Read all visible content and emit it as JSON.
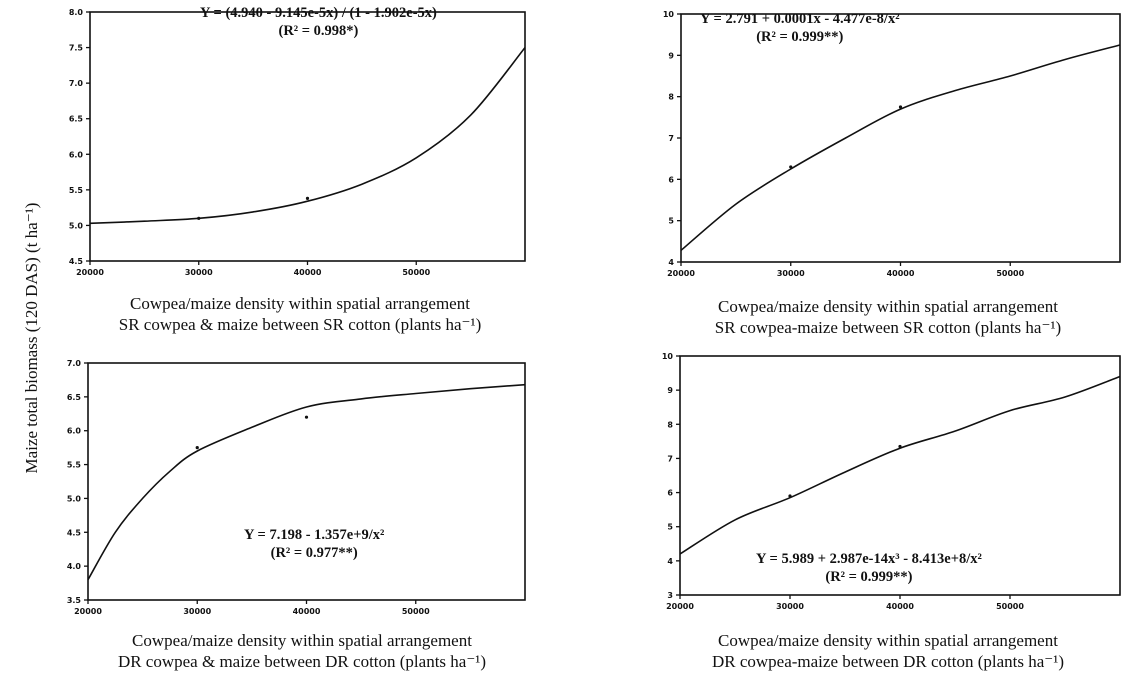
{
  "y_axis_label": "Maize total biomass (120 DAS) (t ha⁻¹)",
  "panels": [
    {
      "equation": "Y = (4.940 - 9.145e-5x) / (1 - 1.902e-5x)",
      "r2": "(R² = 0.998*)",
      "caption_line1": "Cowpea/maize density within spatial arrangement",
      "caption_line2": "SR cowpea & maize between SR cotton (plants ha⁻¹)"
    },
    {
      "equation": "Y = 2.791 + 0.0001x - 4.477e-8/x²",
      "r2": "(R² = 0.999**)",
      "caption_line1": "Cowpea/maize density within spatial arrangement",
      "caption_line2": "SR cowpea-maize between SR cotton (plants ha⁻¹)"
    },
    {
      "equation": "Y = 7.198 - 1.357e+9/x²",
      "r2": "(R² = 0.977**)",
      "caption_line1": "Cowpea/maize density within spatial arrangement",
      "caption_line2": "DR cowpea & maize between DR cotton (plants ha⁻¹)"
    },
    {
      "equation": "Y = 5.989 + 2.987e-14x³ - 8.413e+8/x²",
      "r2": "(R² = 0.999**)",
      "caption_line1": "Cowpea/maize density within spatial arrangement",
      "caption_line2": "DR cowpea-maize between DR cotton (plants ha⁻¹)"
    }
  ],
  "chart_data": [
    {
      "type": "line",
      "xlim": [
        20000,
        60000
      ],
      "ylim": [
        4.5,
        8.0
      ],
      "xticks": [
        "20000",
        "30000",
        "40000",
        "50000"
      ],
      "yticks": [
        "4.5",
        "5.0",
        "5.5",
        "6.0",
        "6.5",
        "7.0",
        "7.5",
        "8.0"
      ],
      "x": [
        20000,
        25000,
        30000,
        35000,
        40000,
        45000,
        50000,
        55000,
        60000
      ],
      "y": [
        5.03,
        5.06,
        5.1,
        5.19,
        5.34,
        5.58,
        5.95,
        6.55,
        7.5
      ],
      "points": [
        {
          "x": 30000,
          "y": 5.1
        },
        {
          "x": 40000,
          "y": 5.38
        }
      ],
      "grid": false
    },
    {
      "type": "line",
      "xlim": [
        20000,
        60000
      ],
      "ylim": [
        4,
        10
      ],
      "xticks": [
        "20000",
        "30000",
        "40000",
        "50000"
      ],
      "yticks": [
        "4",
        "5",
        "6",
        "7",
        "8",
        "9",
        "10"
      ],
      "x": [
        20000,
        25000,
        30000,
        35000,
        40000,
        45000,
        50000,
        55000,
        60000
      ],
      "y": [
        4.28,
        5.4,
        6.25,
        7.0,
        7.7,
        8.15,
        8.5,
        8.9,
        9.25
      ],
      "points": [
        {
          "x": 30000,
          "y": 6.3
        },
        {
          "x": 40000,
          "y": 7.75
        }
      ],
      "grid": false
    },
    {
      "type": "line",
      "xlim": [
        20000,
        60000
      ],
      "ylim": [
        3.5,
        7.0
      ],
      "xticks": [
        "20000",
        "30000",
        "40000",
        "50000"
      ],
      "yticks": [
        "3.5",
        "4.0",
        "4.5",
        "5.0",
        "5.5",
        "6.0",
        "6.5",
        "7.0"
      ],
      "x": [
        20000,
        22500,
        25000,
        27500,
        30000,
        35000,
        40000,
        45000,
        50000,
        55000,
        60000
      ],
      "y": [
        3.8,
        4.5,
        5.0,
        5.4,
        5.7,
        6.05,
        6.35,
        6.47,
        6.55,
        6.62,
        6.68
      ],
      "points": [
        {
          "x": 30000,
          "y": 5.75
        },
        {
          "x": 40000,
          "y": 6.2
        }
      ],
      "grid": false
    },
    {
      "type": "line",
      "xlim": [
        20000,
        60000
      ],
      "ylim": [
        3,
        10
      ],
      "xticks": [
        "20000",
        "30000",
        "40000",
        "50000"
      ],
      "yticks": [
        "3",
        "4",
        "5",
        "6",
        "7",
        "8",
        "9",
        "10"
      ],
      "x": [
        20000,
        25000,
        30000,
        35000,
        40000,
        45000,
        50000,
        55000,
        60000
      ],
      "y": [
        4.2,
        5.2,
        5.85,
        6.6,
        7.3,
        7.8,
        8.4,
        8.8,
        9.4
      ],
      "points": [
        {
          "x": 30000,
          "y": 5.9
        },
        {
          "x": 40000,
          "y": 7.35
        }
      ],
      "grid": false
    }
  ]
}
